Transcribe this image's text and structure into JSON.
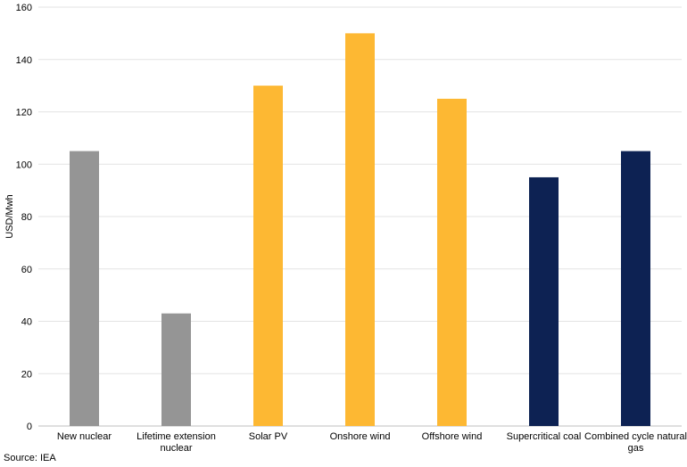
{
  "chart_data": {
    "type": "bar",
    "title": "",
    "xlabel": "",
    "ylabel": "USD/Mwh",
    "ylim": [
      0,
      160
    ],
    "yticks": [
      0,
      20,
      40,
      60,
      80,
      100,
      120,
      140,
      160
    ],
    "grid": true,
    "categories": [
      [
        "New nuclear"
      ],
      [
        "Lifetime extension",
        "nuclear"
      ],
      [
        "Solar PV"
      ],
      [
        "Onshore wind"
      ],
      [
        "Offshore wind"
      ],
      [
        "Supercritical coal"
      ],
      [
        "Combined cycle natural",
        "gas"
      ]
    ],
    "values": [
      105,
      43,
      130,
      150,
      125,
      95,
      105
    ],
    "bar_colors": [
      "#959595",
      "#959595",
      "#FDB833",
      "#FDB833",
      "#FDB833",
      "#0D2253",
      "#0D2253"
    ]
  },
  "source_text": "Source: IEA"
}
